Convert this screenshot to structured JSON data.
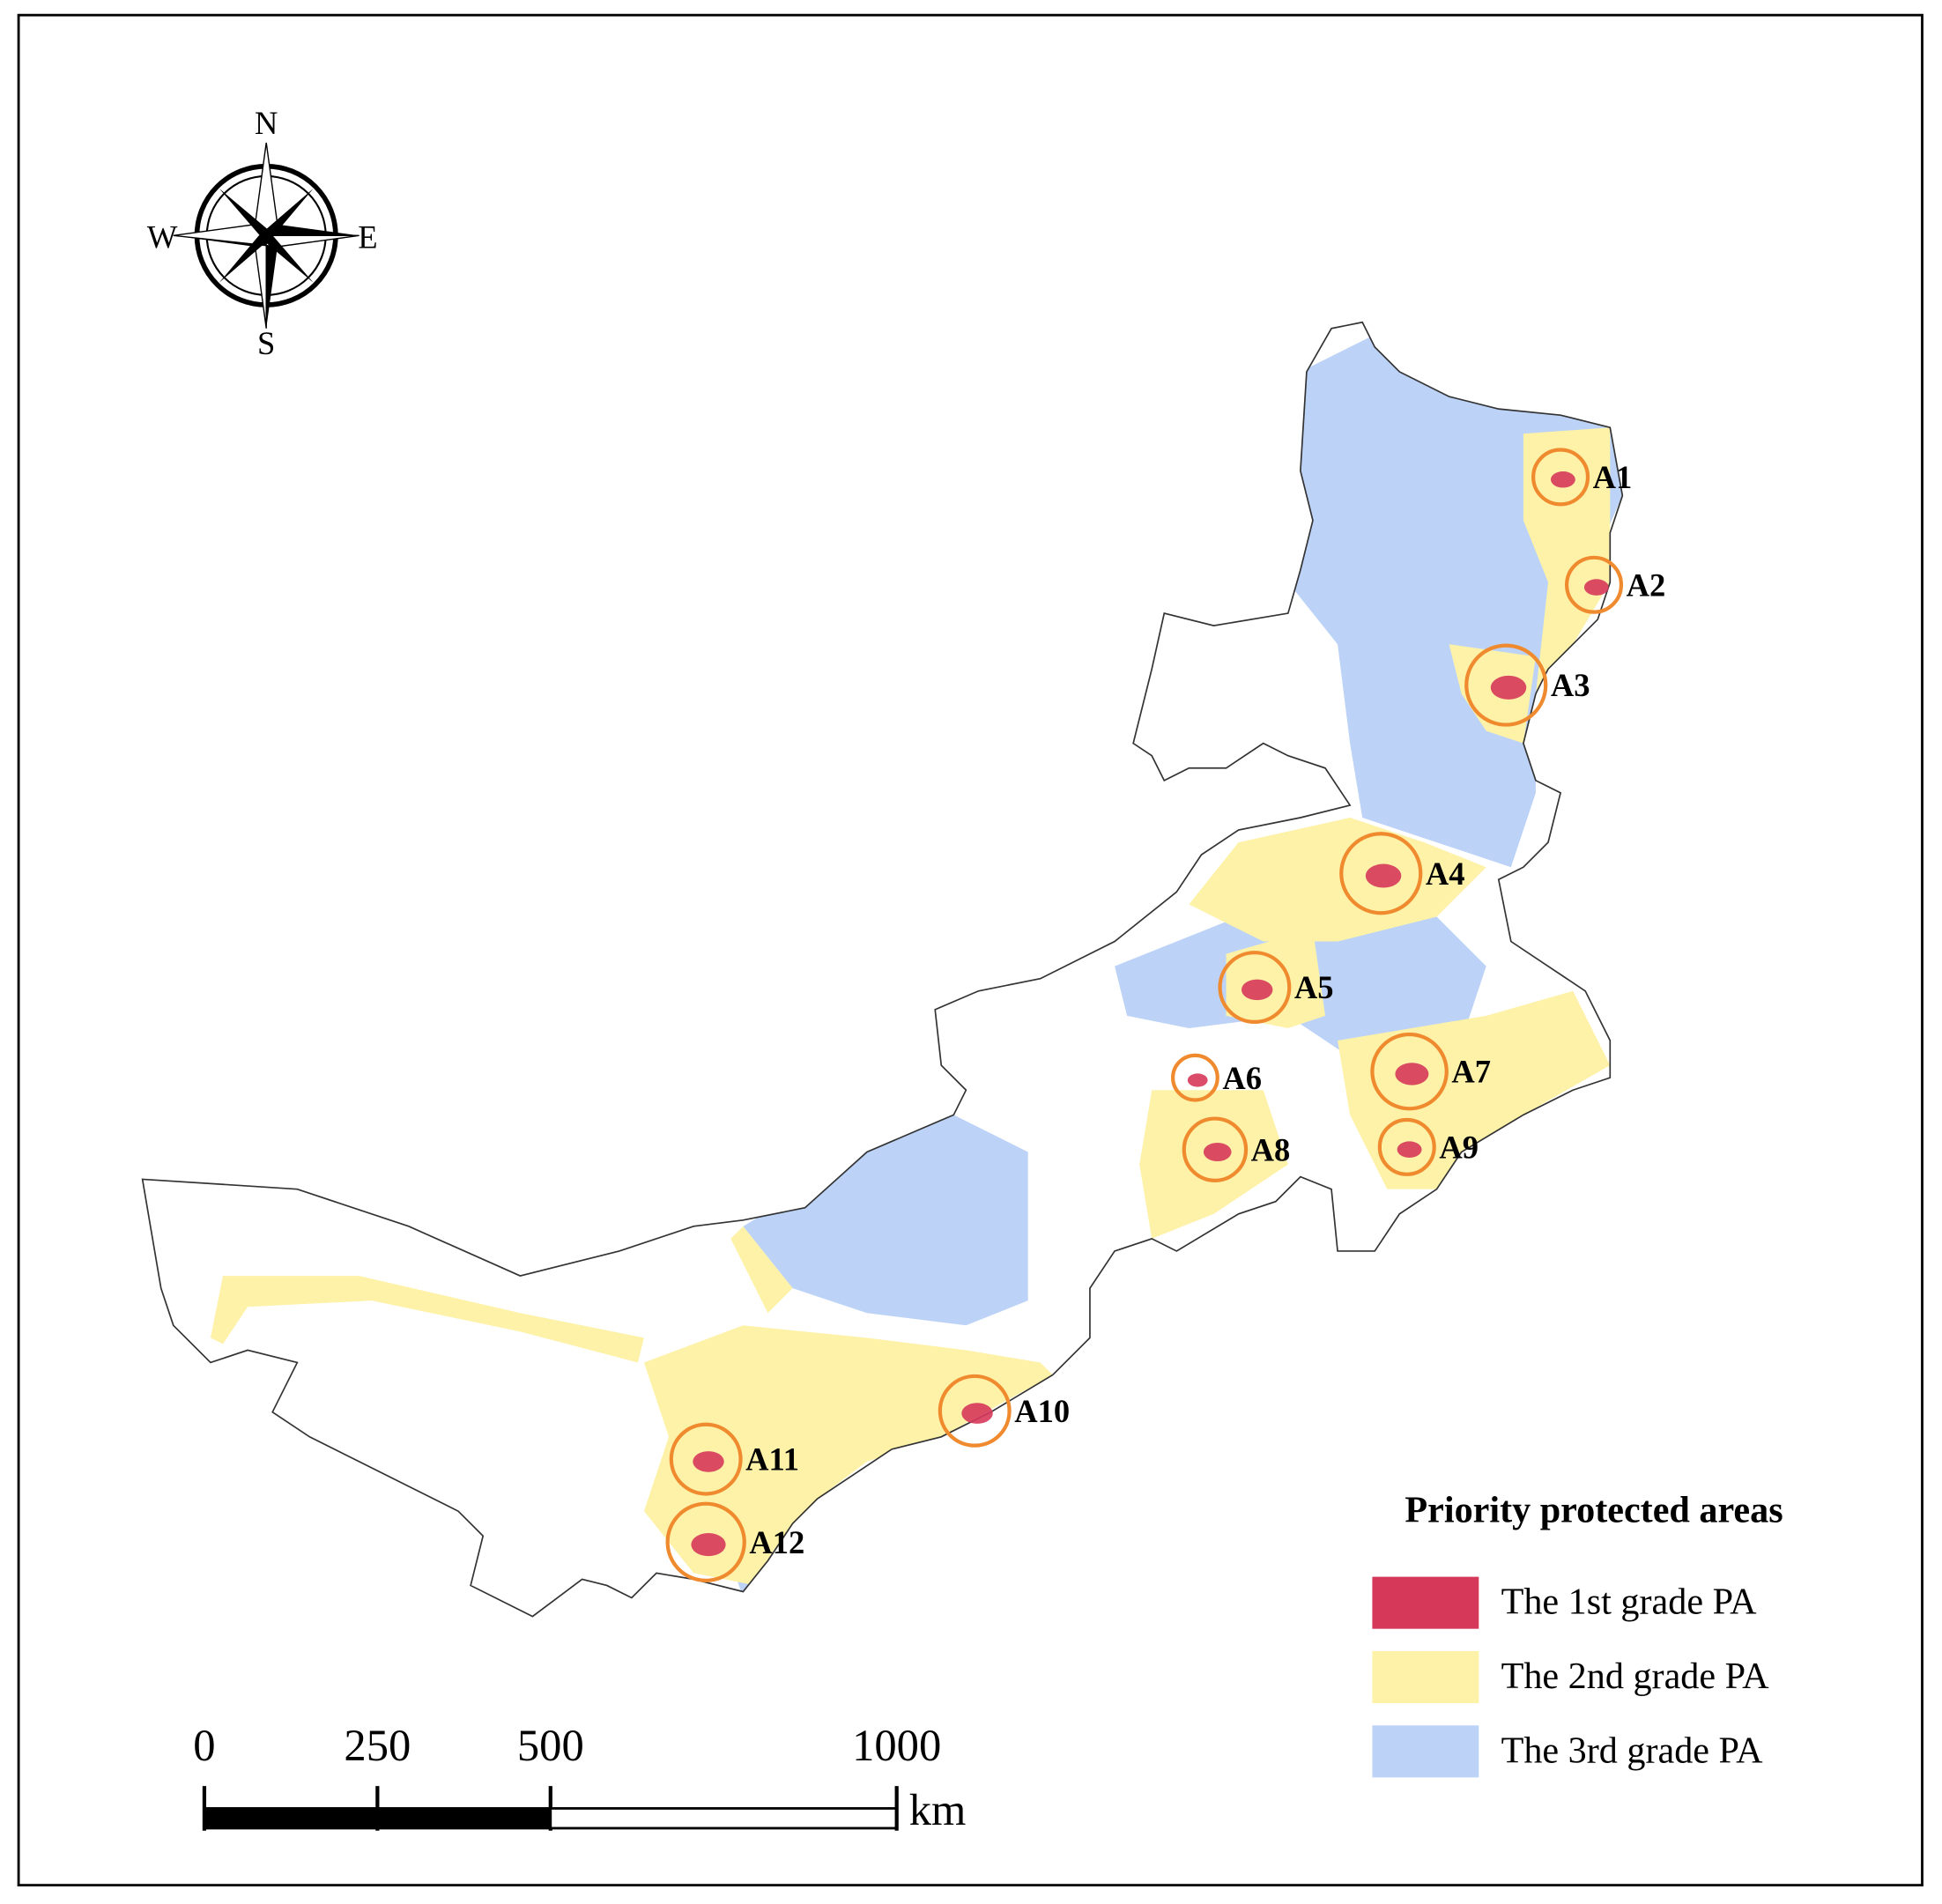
{
  "compass": {
    "north": "N",
    "south": "S",
    "east": "E",
    "west": "W"
  },
  "areas": [
    "A1",
    "A2",
    "A3",
    "A4",
    "A5",
    "A6",
    "A7",
    "A8",
    "A9",
    "A10",
    "A11",
    "A12"
  ],
  "legend": {
    "title": "Priority protected areas",
    "items": [
      {
        "label": "The 1st grade PA",
        "color": "#d6385a"
      },
      {
        "label": "The 2nd grade PA",
        "color": "#fdf2a8"
      },
      {
        "label": "The 3rd grade PA",
        "color": "#bcd3f7"
      }
    ]
  },
  "scale_bar": {
    "ticks": [
      0,
      250,
      500,
      1000
    ],
    "unit": "km"
  }
}
